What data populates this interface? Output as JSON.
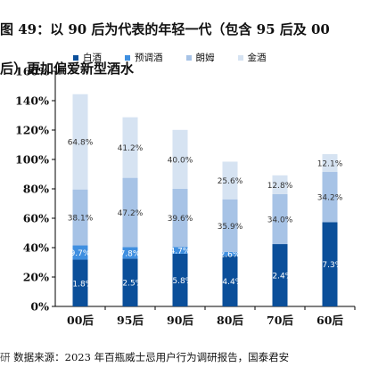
{
  "title": {
    "line1": "图 49：以 90 后为代表的年轻一代（包含 95 后及 00",
    "line2": "后）更加偏爱新型酒水"
  },
  "source": {
    "edge": "研",
    "text": "数据来源：2023 年百瓶威士忌用户行为调研报告，国泰君安"
  },
  "colors": {
    "白酒": "#0b4f9a",
    "预调酒": "#3f8fe0",
    "朗姆": "#a7c3e6",
    "金酒": "#d6e3f2"
  },
  "chart_data": {
    "type": "bar",
    "stacked": true,
    "categories": [
      "00后",
      "95后",
      "90后",
      "80后",
      "70后",
      "60后"
    ],
    "series": [
      {
        "name": "白酒",
        "values": [
          31.8,
          32.5,
          35.8,
          34.4,
          42.4,
          57.3
        ]
      },
      {
        "name": "预调酒",
        "values": [
          9.7,
          7.8,
          4.7,
          2.6,
          0,
          0
        ]
      },
      {
        "name": "朗姆",
        "values": [
          38.1,
          47.2,
          39.6,
          35.9,
          34.0,
          34.2
        ]
      },
      {
        "name": "金酒",
        "values": [
          64.8,
          41.2,
          40.0,
          25.6,
          12.8,
          12.1
        ]
      }
    ],
    "labels": [
      [
        "31.8%",
        "32.5%",
        "35.8%",
        "34.4%",
        "42.4%",
        "57.3%"
      ],
      [
        "9.7%",
        "7.8%",
        "4.7%",
        "2.6%",
        "",
        ""
      ],
      [
        "38.1%",
        "47.2%",
        "39.6%",
        "35.9%",
        "34.0%",
        "34.2%"
      ],
      [
        "64.8%",
        "41.2%",
        "40.0%",
        "25.6%",
        "12.8%",
        "12.1%"
      ]
    ],
    "ylim": [
      0,
      160
    ],
    "yticks": [
      "0%",
      "20%",
      "40%",
      "60%",
      "80%",
      "100%",
      "120%",
      "140%",
      "160%"
    ],
    "grid": false,
    "legend_position": "top"
  }
}
